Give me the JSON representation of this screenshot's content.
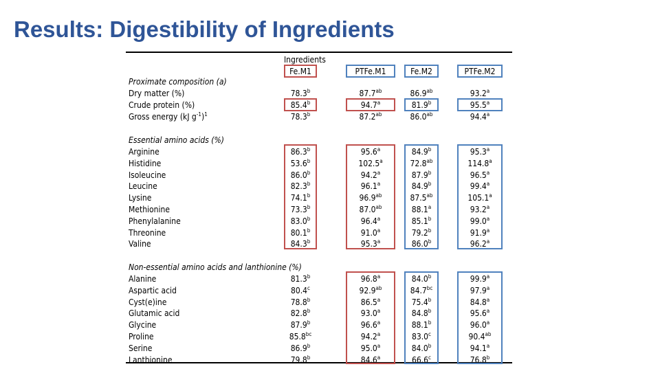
{
  "title": "Results: Digestibility of Ingredients",
  "header": {
    "group_label": "Ingredients",
    "columns": [
      "Fe.M1",
      "PTFe.M1",
      "Fe.M2",
      "PTFe.M2"
    ]
  },
  "sections": [
    {
      "name": "Proximate composition (a)",
      "rows": [
        {
          "label": "Dry matter (%)",
          "values": [
            [
              "78.3",
              "b"
            ],
            [
              "87.7",
              "ab"
            ],
            [
              "86.9",
              "ab"
            ],
            [
              "93.2",
              "a"
            ]
          ]
        },
        {
          "label": "Crude protein (%)",
          "values": [
            [
              "85.4",
              "b"
            ],
            [
              "94.7",
              "a"
            ],
            [
              "81.9",
              "b"
            ],
            [
              "95.5",
              "a"
            ]
          ]
        },
        {
          "label": "Gross energy (kJ g-1)1",
          "values": [
            [
              "78.3",
              "b"
            ],
            [
              "87.2",
              "ab"
            ],
            [
              "86.0",
              "ab"
            ],
            [
              "94.4",
              "a"
            ]
          ]
        }
      ]
    },
    {
      "name": "Essential amino acids (%)",
      "rows": [
        {
          "label": "Arginine",
          "values": [
            [
              "86.3",
              "b"
            ],
            [
              "95.6",
              "a"
            ],
            [
              "84.9",
              "b"
            ],
            [
              "95.3",
              "a"
            ]
          ]
        },
        {
          "label": "Histidine",
          "values": [
            [
              "53.6",
              "b"
            ],
            [
              "102.5",
              "a"
            ],
            [
              "72.8",
              "ab"
            ],
            [
              "114.8",
              "a"
            ]
          ]
        },
        {
          "label": "Isoleucine",
          "values": [
            [
              "86.0",
              "b"
            ],
            [
              "94.2",
              "a"
            ],
            [
              "87.9",
              "b"
            ],
            [
              "96.5",
              "a"
            ]
          ]
        },
        {
          "label": "Leucine",
          "values": [
            [
              "82.3",
              "b"
            ],
            [
              "96.1",
              "a"
            ],
            [
              "84.9",
              "b"
            ],
            [
              "99.4",
              "a"
            ]
          ]
        },
        {
          "label": "Lysine",
          "values": [
            [
              "74.1",
              "b"
            ],
            [
              "96.9",
              "ab"
            ],
            [
              "87.5",
              "ab"
            ],
            [
              "105.1",
              "a"
            ]
          ]
        },
        {
          "label": "Methionine",
          "values": [
            [
              "73.3",
              "b"
            ],
            [
              "87.0",
              "ab"
            ],
            [
              "88.1",
              "a"
            ],
            [
              "93.2",
              "a"
            ]
          ]
        },
        {
          "label": "Phenylalanine",
          "values": [
            [
              "83.0",
              "b"
            ],
            [
              "96.4",
              "a"
            ],
            [
              "85.1",
              "b"
            ],
            [
              "99.0",
              "a"
            ]
          ]
        },
        {
          "label": "Threonine",
          "values": [
            [
              "80.1",
              "b"
            ],
            [
              "91.0",
              "a"
            ],
            [
              "79.2",
              "b"
            ],
            [
              "91.9",
              "a"
            ]
          ]
        },
        {
          "label": "Valine",
          "values": [
            [
              "84.3",
              "b"
            ],
            [
              "95.3",
              "a"
            ],
            [
              "86.0",
              "b"
            ],
            [
              "96.2",
              "a"
            ]
          ]
        }
      ]
    },
    {
      "name": "Non-essential amino acids and lanthionine (%)",
      "rows": [
        {
          "label": "Alanine",
          "values": [
            [
              "81.3",
              "b"
            ],
            [
              "96.8",
              "a"
            ],
            [
              "84.0",
              "b"
            ],
            [
              "99.9",
              "a"
            ]
          ]
        },
        {
          "label": "Aspartic acid",
          "values": [
            [
              "80.4",
              "c"
            ],
            [
              "92.9",
              "ab"
            ],
            [
              "84.7",
              "bc"
            ],
            [
              "97.9",
              "a"
            ]
          ]
        },
        {
          "label": "Cyst(e)ine",
          "values": [
            [
              "78.8",
              "b"
            ],
            [
              "86.5",
              "a"
            ],
            [
              "75.4",
              "b"
            ],
            [
              "84.8",
              "a"
            ]
          ]
        },
        {
          "label": "Glutamic acid",
          "values": [
            [
              "82.8",
              "b"
            ],
            [
              "93.0",
              "a"
            ],
            [
              "84.8",
              "b"
            ],
            [
              "95.6",
              "a"
            ]
          ]
        },
        {
          "label": "Glycine",
          "values": [
            [
              "87.9",
              "b"
            ],
            [
              "96.6",
              "a"
            ],
            [
              "88.1",
              "b"
            ],
            [
              "96.0",
              "a"
            ]
          ]
        },
        {
          "label": "Proline",
          "values": [
            [
              "85.8",
              "bc"
            ],
            [
              "94.2",
              "a"
            ],
            [
              "83.0",
              "c"
            ],
            [
              "90.4",
              "ab"
            ]
          ]
        },
        {
          "label": "Serine",
          "values": [
            [
              "86.9",
              "b"
            ],
            [
              "95.0",
              "a"
            ],
            [
              "84.0",
              "b"
            ],
            [
              "94.1",
              "a"
            ]
          ]
        },
        {
          "label": "Lanthionine",
          "values": [
            [
              "79.8",
              "b"
            ],
            [
              "84.6",
              "a"
            ],
            [
              "66.6",
              "c"
            ],
            [
              "76.8",
              "b"
            ]
          ]
        }
      ]
    }
  ]
}
